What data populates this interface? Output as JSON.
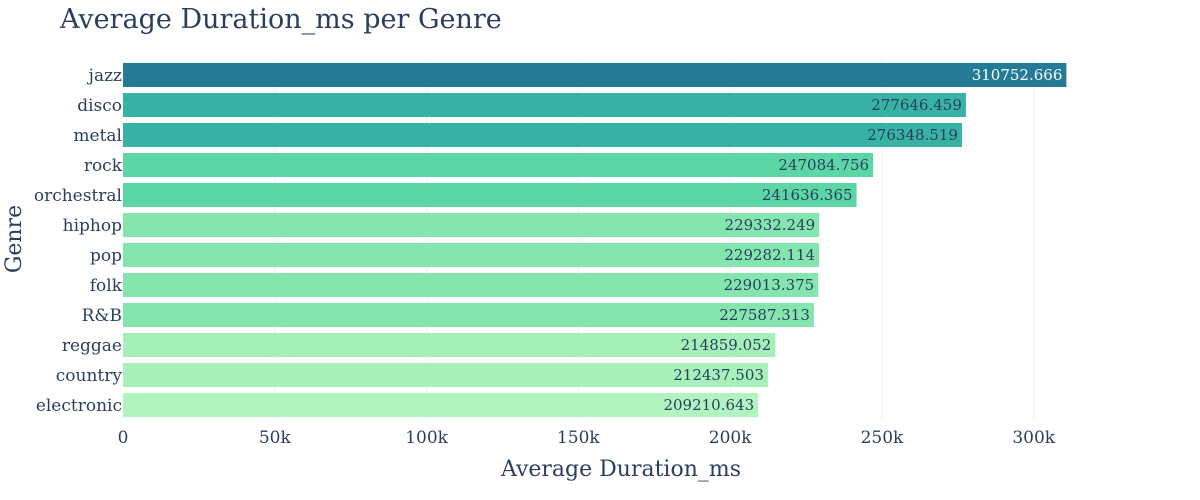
{
  "chart_data": {
    "type": "bar",
    "orientation": "horizontal",
    "title": "Average Duration_ms per Genre",
    "xlabel": "Average Duration_ms",
    "ylabel": "Genre",
    "xlim": [
      0,
      335000
    ],
    "x_ticks": [
      0,
      50000,
      100000,
      150000,
      200000,
      250000,
      300000
    ],
    "x_tick_labels": [
      "0",
      "50k",
      "100k",
      "150k",
      "200k",
      "250k",
      "300k"
    ],
    "grid": true,
    "categories": [
      "jazz",
      "disco",
      "metal",
      "rock",
      "orchestral",
      "hiphop",
      "pop",
      "folk",
      "R&B",
      "reggae",
      "country",
      "electronic"
    ],
    "values": [
      310752.666,
      277646.459,
      276348.519,
      247084.756,
      241636.365,
      229332.249,
      229282.114,
      229013.375,
      227587.313,
      214859.052,
      212437.503,
      209210.643
    ],
    "value_labels": [
      "310752.666",
      "277646.459",
      "276348.519",
      "247084.756",
      "241636.365",
      "229332.249",
      "229282.114",
      "229013.375",
      "227587.313",
      "214859.052",
      "212437.503",
      "209210.643"
    ],
    "colors": [
      "#247b95",
      "#38b2a5",
      "#38b2a5",
      "#5dd6a5",
      "#5dd6a5",
      "#84e6ae",
      "#84e6ae",
      "#84e6ae",
      "#84e6ae",
      "#a5efb8",
      "#a9f1bb",
      "#b1f4c0"
    ],
    "label_colors": [
      "#ffffff",
      "#2a3f5f",
      "#2a3f5f",
      "#2a3f5f",
      "#2a3f5f",
      "#2a3f5f",
      "#2a3f5f",
      "#2a3f5f",
      "#2a3f5f",
      "#2a3f5f",
      "#2a3f5f",
      "#2a3f5f"
    ]
  }
}
